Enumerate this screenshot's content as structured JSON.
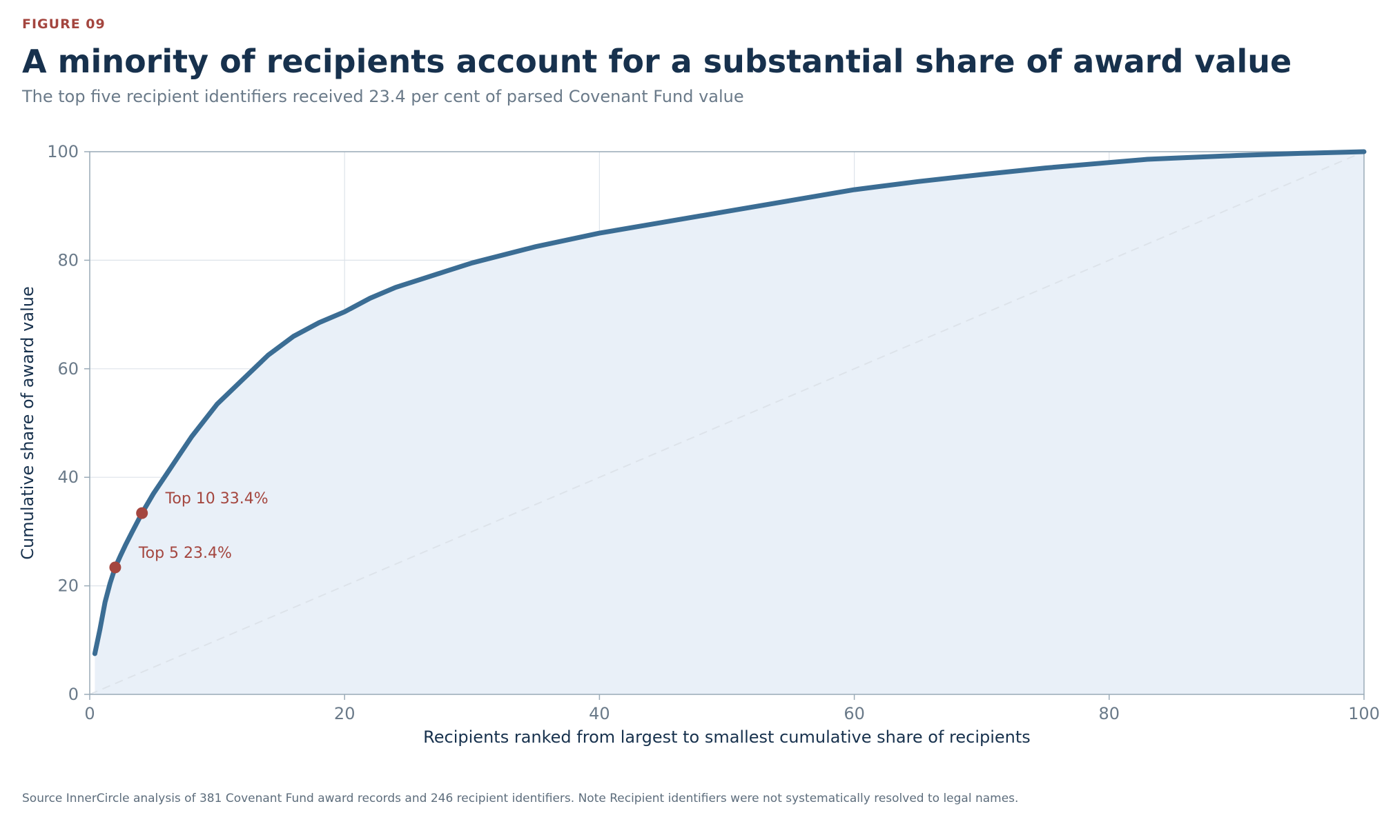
{
  "figure_label": "FIGURE 09",
  "title": "A minority of recipients account for a substantial share of award value",
  "subtitle": "The top five recipient identifiers received 23.4 per cent of parsed Covenant Fund value",
  "source_text": "Source  InnerCircle analysis of 381 Covenant Fund award records and 246 recipient identifiers.   Note  Recipient identifiers were not systematically resolved to legal names.",
  "colors": {
    "curve": "#3b6d94",
    "fill": "#e9f0f8",
    "highlight": "#a4463f",
    "grid": "#dde3ea",
    "axis": "#9aabb8",
    "diagonal": "#dde3ea"
  },
  "chart_data": {
    "type": "line",
    "xlabel": "Recipients ranked from largest to smallest  cumulative share of recipients",
    "ylabel": "Cumulative share of award value",
    "xlim": [
      0,
      100
    ],
    "ylim": [
      0,
      100
    ],
    "x_ticks": [
      "0",
      "20",
      "40",
      "60",
      "80",
      "100"
    ],
    "y_ticks": [
      "0",
      "20",
      "40",
      "60",
      "80",
      "100"
    ],
    "grid": true,
    "series": [
      {
        "x": [
          0.4,
          0.8,
          1.2,
          1.6,
          2.0,
          2.4,
          2.8,
          3.3,
          4.1,
          5.0,
          6.0,
          7.0,
          8.0,
          9.0,
          10.0,
          12.0,
          14.0,
          16.0,
          18.0,
          20.0,
          22.0,
          24.0,
          26.0,
          28.0,
          30.0,
          35.0,
          40.0,
          45.0,
          50.0,
          55.0,
          60.0,
          65.0,
          70.0,
          75.0,
          80.0,
          83.0,
          85.0,
          90.0,
          95.0,
          100.0
        ],
        "y": [
          7.5,
          12.0,
          17.0,
          20.5,
          23.4,
          25.5,
          27.5,
          29.8,
          33.4,
          37.0,
          40.5,
          44.0,
          47.5,
          50.5,
          53.5,
          58.0,
          62.5,
          66.0,
          68.5,
          70.5,
          73.0,
          75.0,
          76.5,
          78.0,
          79.5,
          82.5,
          85.0,
          87.0,
          89.0,
          91.0,
          93.0,
          94.5,
          95.8,
          97.0,
          98.0,
          98.6,
          98.8,
          99.3,
          99.7,
          100.0
        ]
      },
      {
        "x": [
          0,
          100
        ],
        "y": [
          0,
          100
        ]
      }
    ],
    "annotations": [
      {
        "label": "Top 5  23.4%",
        "x": 2.0,
        "y": 23.4
      },
      {
        "label": "Top 10  33.4%",
        "x": 4.1,
        "y": 33.4
      }
    ]
  }
}
